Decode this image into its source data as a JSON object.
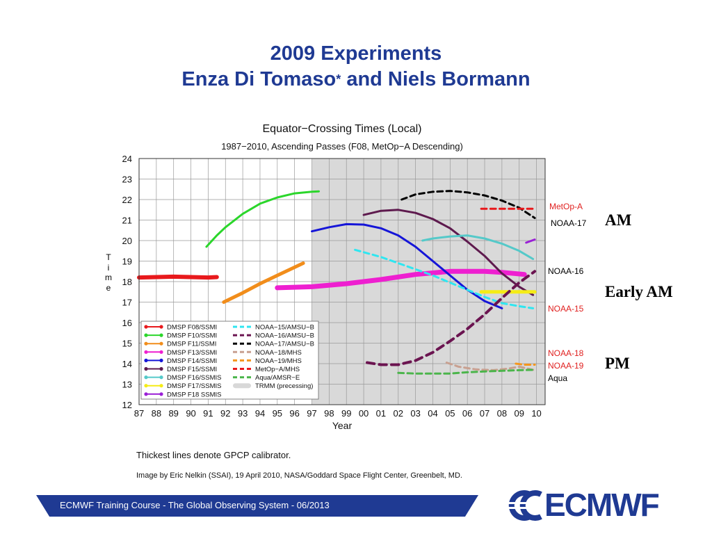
{
  "slide": {
    "title_line1": "2009 Experiments",
    "title_line2": "Enza Di Tomaso",
    "title_star": "*",
    "title_line2_rest": " and Niels Bormann"
  },
  "right_labels": {
    "metop_a": "MetOp-A",
    "noaa17": "NOAA-17",
    "am": "AM",
    "noaa16": "NOAA-16",
    "early_am": "Early AM",
    "noaa15": "NOAA-15",
    "noaa18": "NOAA-18",
    "noaa19": "NOAA-19",
    "pm": "PM",
    "aqua": "Aqua"
  },
  "notes": {
    "thickest": "Thickest lines denote GPCP calibrator.",
    "credit": "Image by Eric Nelkin (SSAI), 19 April 2010, NASA/Goddard Space Flight Center, Greenbelt, MD."
  },
  "footer": {
    "text": "ECMWF Training Course - The Global Observing System - 06/2013",
    "logo": "ECMWF"
  },
  "colors": {
    "title": "#1f3a93",
    "plot_shade": "#d9d9d9",
    "grid": "#999999"
  },
  "chart_data": {
    "type": "line",
    "title": "Equator−Crossing Times (Local)",
    "subtitle": "1987−2010, Ascending Passes (F08, MetOp−A Descending)",
    "xlabel": "Year",
    "ylabel": "Time",
    "ylabel_letters": [
      "T",
      "i",
      "m",
      "e"
    ],
    "xlim": [
      1987,
      2010.5
    ],
    "ylim": [
      12,
      24
    ],
    "x_ticks": [
      1987,
      1988,
      1989,
      1990,
      1991,
      1992,
      1993,
      1994,
      1995,
      1996,
      1997,
      1998,
      1999,
      2000,
      2001,
      2002,
      2003,
      2004,
      2005,
      2006,
      2007,
      2008,
      2009,
      2010
    ],
    "x_tick_labels": [
      "87",
      "88",
      "89",
      "90",
      "91",
      "92",
      "93",
      "94",
      "95",
      "96",
      "97",
      "98",
      "99",
      "00",
      "01",
      "02",
      "03",
      "04",
      "05",
      "06",
      "07",
      "08",
      "09",
      "10"
    ],
    "y_ticks": [
      12,
      13,
      14,
      15,
      16,
      17,
      18,
      19,
      20,
      21,
      22,
      23,
      24
    ],
    "y_tick_labels": [
      "12",
      "13",
      "14",
      "15",
      "16",
      "17",
      "18",
      "19",
      "20",
      "21",
      "22",
      "23",
      "24"
    ],
    "grid": true,
    "shaded_region": [
      1997,
      2010.5
    ],
    "legend_position": "bottom-left",
    "legend": [
      {
        "name": "DMSP F08/SSMI",
        "color": "#e8191c",
        "style": "solid-dot"
      },
      {
        "name": "DMSP F10/SSMI",
        "color": "#2bd62b",
        "style": "solid-dot"
      },
      {
        "name": "DMSP F11/SSMI",
        "color": "#f18d1b",
        "style": "solid-dot"
      },
      {
        "name": "DMSP F13/SSMI",
        "color": "#ee1fd0",
        "style": "solid-dot"
      },
      {
        "name": "DMSP F14/SSMI",
        "color": "#1515d8",
        "style": "solid-dot"
      },
      {
        "name": "DMSP F15/SSMI",
        "color": "#5e1a4e",
        "style": "solid-dot"
      },
      {
        "name": "DMSP F16/SSMIS",
        "color": "#55c9c9",
        "style": "solid-dot"
      },
      {
        "name": "DMSP F17/SSMIS",
        "color": "#f5ec16",
        "style": "solid-dot"
      },
      {
        "name": "DMSP F18 SSMIS",
        "color": "#9a1fd6",
        "style": "solid-dot"
      },
      {
        "name": "NOAA−15/AMSU−B",
        "color": "#2fe6f0",
        "style": "dash"
      },
      {
        "name": "NOAA−16/AMSU−B",
        "color": "#6b1450",
        "style": "dash"
      },
      {
        "name": "NOAA−17/AMSU−B",
        "color": "#000000",
        "style": "dash"
      },
      {
        "name": "NOAA−18/MHS",
        "color": "#c8a090",
        "style": "dash"
      },
      {
        "name": "NOAA−19/MHS",
        "color": "#f5961c",
        "style": "dash"
      },
      {
        "name": "MetOp−A/MHS",
        "color": "#e8191c",
        "style": "dash"
      },
      {
        "name": "Aqua/AMSR−E",
        "color": "#4bb54b",
        "style": "dash"
      },
      {
        "name": "TRMM (precessing)",
        "color": "#d8d8d8",
        "style": "bar"
      }
    ],
    "series": [
      {
        "name": "DMSP F08/SSMI",
        "color": "#e8191c",
        "dash": false,
        "width": 6,
        "points": [
          [
            1987.0,
            18.2
          ],
          [
            1988.0,
            18.22
          ],
          [
            1989.0,
            18.24
          ],
          [
            1990.0,
            18.22
          ],
          [
            1991.0,
            18.2
          ],
          [
            1991.5,
            18.22
          ]
        ]
      },
      {
        "name": "DMSP F10/SSMI",
        "color": "#2bd62b",
        "dash": false,
        "width": 3,
        "points": [
          [
            1990.9,
            19.7
          ],
          [
            1991.5,
            20.25
          ],
          [
            1992.0,
            20.65
          ],
          [
            1993.0,
            21.3
          ],
          [
            1994.0,
            21.8
          ],
          [
            1995.0,
            22.1
          ],
          [
            1996.0,
            22.3
          ],
          [
            1997.0,
            22.38
          ],
          [
            1997.4,
            22.4
          ]
        ]
      },
      {
        "name": "DMSP F11/SSMI",
        "color": "#f18d1b",
        "dash": false,
        "width": 5,
        "points": [
          [
            1991.9,
            17.0
          ],
          [
            1993.0,
            17.45
          ],
          [
            1994.0,
            17.9
          ],
          [
            1995.0,
            18.3
          ],
          [
            1996.0,
            18.7
          ],
          [
            1996.5,
            18.9
          ]
        ]
      },
      {
        "name": "DMSP F13/SSMI",
        "color": "#ee1fd0",
        "dash": false,
        "width": 7,
        "points": [
          [
            1995.0,
            17.7
          ],
          [
            1997.0,
            17.75
          ],
          [
            1999.0,
            17.9
          ],
          [
            2001.0,
            18.1
          ],
          [
            2003.0,
            18.35
          ],
          [
            2005.0,
            18.5
          ],
          [
            2007.0,
            18.5
          ],
          [
            2008.0,
            18.45
          ],
          [
            2009.3,
            18.35
          ]
        ]
      },
      {
        "name": "DMSP F14/SSMI",
        "color": "#1515d8",
        "dash": false,
        "width": 3,
        "points": [
          [
            1997.0,
            20.45
          ],
          [
            1998.0,
            20.65
          ],
          [
            1999.0,
            20.8
          ],
          [
            2000.0,
            20.78
          ],
          [
            2001.0,
            20.6
          ],
          [
            2002.0,
            20.25
          ],
          [
            2003.0,
            19.7
          ],
          [
            2004.0,
            19.0
          ],
          [
            2005.0,
            18.3
          ],
          [
            2006.0,
            17.6
          ],
          [
            2007.0,
            17.05
          ],
          [
            2008.0,
            16.7
          ]
        ]
      },
      {
        "name": "DMSP F15/SSMI",
        "color": "#5e1a4e",
        "dash": false,
        "width": 3,
        "points": [
          [
            2000.0,
            21.25
          ],
          [
            2001.0,
            21.45
          ],
          [
            2002.0,
            21.5
          ],
          [
            2003.0,
            21.35
          ],
          [
            2004.0,
            21.05
          ],
          [
            2005.0,
            20.6
          ],
          [
            2006.0,
            19.95
          ],
          [
            2007.0,
            19.25
          ],
          [
            2008.0,
            18.4
          ],
          [
            2009.0,
            17.75
          ],
          [
            2009.8,
            17.35
          ]
        ]
      },
      {
        "name": "DMSP F16/SSMIS",
        "color": "#55c9c9",
        "dash": false,
        "width": 3,
        "points": [
          [
            2003.4,
            20.0
          ],
          [
            2004.0,
            20.1
          ],
          [
            2005.0,
            20.2
          ],
          [
            2006.0,
            20.25
          ],
          [
            2007.0,
            20.1
          ],
          [
            2008.0,
            19.85
          ],
          [
            2009.0,
            19.5
          ],
          [
            2009.8,
            19.1
          ]
        ]
      },
      {
        "name": "DMSP F17/SSMIS",
        "color": "#f5ec16",
        "dash": false,
        "width": 5,
        "points": [
          [
            2006.8,
            17.5
          ],
          [
            2007.5,
            17.5
          ],
          [
            2008.2,
            17.5
          ],
          [
            2009.0,
            17.5
          ],
          [
            2009.9,
            17.5
          ]
        ]
      },
      {
        "name": "DMSP F18 SSMIS",
        "color": "#9a1fd6",
        "dash": false,
        "width": 3,
        "points": [
          [
            2009.4,
            19.9
          ],
          [
            2009.9,
            20.05
          ]
        ]
      },
      {
        "name": "NOAA−15/AMSU−B",
        "color": "#2fe6f0",
        "dash": true,
        "width": 3,
        "points": [
          [
            1999.5,
            19.55
          ],
          [
            2001.0,
            19.2
          ],
          [
            2002.0,
            18.9
          ],
          [
            2003.0,
            18.6
          ],
          [
            2004.0,
            18.3
          ],
          [
            2005.0,
            17.95
          ],
          [
            2006.0,
            17.6
          ],
          [
            2007.0,
            17.25
          ],
          [
            2008.0,
            16.95
          ],
          [
            2009.0,
            16.8
          ],
          [
            2009.8,
            16.7
          ]
        ]
      },
      {
        "name": "NOAA−16/AMSU−B",
        "color": "#6b1450",
        "dash": true,
        "width": 4,
        "points": [
          [
            2000.2,
            14.05
          ],
          [
            2001.0,
            13.95
          ],
          [
            2002.0,
            13.95
          ],
          [
            2003.0,
            14.15
          ],
          [
            2004.0,
            14.55
          ],
          [
            2005.0,
            15.1
          ],
          [
            2006.0,
            15.7
          ],
          [
            2007.0,
            16.4
          ],
          [
            2008.0,
            17.2
          ],
          [
            2009.0,
            17.95
          ],
          [
            2009.9,
            18.5
          ]
        ]
      },
      {
        "name": "NOAA−17/AMSU−B",
        "color": "#000000",
        "dash": true,
        "width": 3,
        "points": [
          [
            2002.2,
            22.0
          ],
          [
            2003.0,
            22.25
          ],
          [
            2004.0,
            22.38
          ],
          [
            2005.0,
            22.42
          ],
          [
            2006.0,
            22.35
          ],
          [
            2007.0,
            22.2
          ],
          [
            2008.0,
            21.95
          ],
          [
            2009.0,
            21.6
          ],
          [
            2009.9,
            21.1
          ]
        ]
      },
      {
        "name": "NOAA−18/MHS",
        "color": "#c8a090",
        "dash": true,
        "width": 3,
        "points": [
          [
            2004.8,
            14.05
          ],
          [
            2005.5,
            13.85
          ],
          [
            2006.5,
            13.72
          ],
          [
            2007.5,
            13.68
          ],
          [
            2008.3,
            13.75
          ],
          [
            2009.0,
            13.85
          ],
          [
            2009.8,
            13.7
          ]
        ]
      },
      {
        "name": "NOAA−19/MHS",
        "color": "#f5961c",
        "dash": true,
        "width": 3,
        "points": [
          [
            2008.8,
            14.0
          ],
          [
            2009.3,
            13.95
          ],
          [
            2009.9,
            13.95
          ]
        ]
      },
      {
        "name": "MetOp−A/MHS",
        "color": "#e8191c",
        "dash": true,
        "width": 3,
        "points": [
          [
            2006.8,
            21.55
          ],
          [
            2008.0,
            21.55
          ],
          [
            2009.0,
            21.55
          ],
          [
            2009.8,
            21.55
          ]
        ]
      },
      {
        "name": "Aqua/AMSR−E",
        "color": "#4bb54b",
        "dash": true,
        "width": 3,
        "points": [
          [
            2002.0,
            13.55
          ],
          [
            2003.0,
            13.52
          ],
          [
            2004.0,
            13.52
          ],
          [
            2005.0,
            13.52
          ],
          [
            2006.0,
            13.58
          ],
          [
            2007.0,
            13.62
          ],
          [
            2008.0,
            13.65
          ],
          [
            2009.0,
            13.68
          ],
          [
            2009.9,
            13.7
          ]
        ]
      }
    ]
  }
}
